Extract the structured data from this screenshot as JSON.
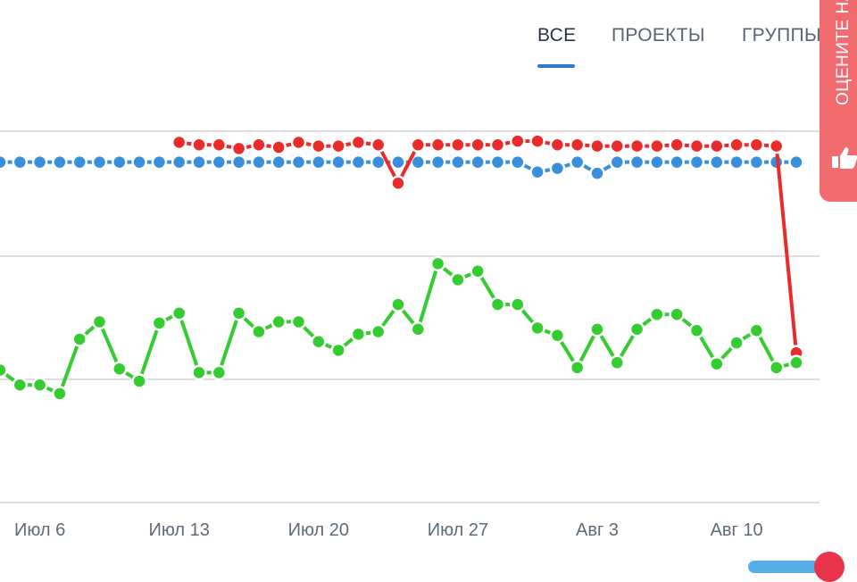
{
  "tabs": [
    {
      "label": "ВСЕ",
      "active": true
    },
    {
      "label": "ПРОЕКТЫ",
      "active": false
    },
    {
      "label": "ГРУППЫ",
      "active": false
    }
  ],
  "feedback": {
    "label": "ОЦЕНИТЕ НА"
  },
  "colors": {
    "blue": "#3a8fdc",
    "red": "#ea2b2b",
    "green": "#34cc30",
    "grid": "#d4d4d4",
    "axis_text": "#5e6b7b",
    "accent": "#2f7ad1",
    "feedback": "#f26b6f"
  },
  "chart_data": {
    "type": "line",
    "categories": [
      "",
      "",
      "Июл 6",
      "",
      "",
      "",
      "",
      "",
      "",
      "Июл 13",
      "",
      "",
      "",
      "",
      "",
      "",
      "Июл 20",
      "",
      "",
      "",
      "",
      "",
      "",
      "Июл 27",
      "",
      "",
      "",
      "",
      "",
      "",
      "Авг 3",
      "",
      "",
      "",
      "",
      "",
      "",
      "Авг 10",
      "",
      "",
      ""
    ],
    "x_labels": [
      "Июл 6",
      "Июл 13",
      "Июл 20",
      "Июл 27",
      "Авг 3",
      "Авг 10"
    ],
    "grid": true,
    "series": [
      {
        "color": "blue",
        "values": [
          97.5,
          97.5,
          97.5,
          97.5,
          97.5,
          97.5,
          97.5,
          97.5,
          97.5,
          97.5,
          97.5,
          97.5,
          97.5,
          97.5,
          97.5,
          97.5,
          97.5,
          97.5,
          97.5,
          97.5,
          97.5,
          97.5,
          97.5,
          97.5,
          97.5,
          97.5,
          97.5,
          96.7,
          97.0,
          97.5,
          96.6,
          97.5,
          97.5,
          97.5,
          97.5,
          97.5,
          97.5,
          97.5,
          97.5,
          97.5,
          97.5
        ]
      },
      {
        "color": "red",
        "values": [
          null,
          null,
          null,
          null,
          null,
          null,
          null,
          null,
          null,
          99.1,
          98.9,
          98.9,
          98.6,
          98.9,
          98.7,
          99.1,
          98.8,
          98.8,
          99.1,
          98.9,
          95.8,
          98.9,
          98.9,
          98.9,
          98.9,
          98.9,
          99.2,
          99.2,
          98.9,
          98.9,
          98.8,
          98.8,
          98.8,
          98.8,
          98.9,
          98.8,
          98.8,
          98.9,
          98.9,
          98.8,
          82.1
        ]
      },
      {
        "color": "green",
        "values": [
          80.7,
          79.5,
          79.5,
          78.8,
          83.2,
          84.6,
          80.8,
          79.8,
          84.5,
          85.3,
          80.5,
          80.5,
          85.3,
          83.8,
          84.6,
          84.6,
          83.0,
          82.3,
          83.6,
          83.8,
          86.0,
          84.0,
          89.3,
          88.0,
          88.7,
          86.0,
          86.0,
          84.1,
          83.5,
          80.9,
          84.0,
          81.3,
          84.0,
          85.2,
          85.2,
          83.9,
          81.2,
          82.9,
          83.9,
          80.9,
          81.3
        ]
      }
    ]
  }
}
